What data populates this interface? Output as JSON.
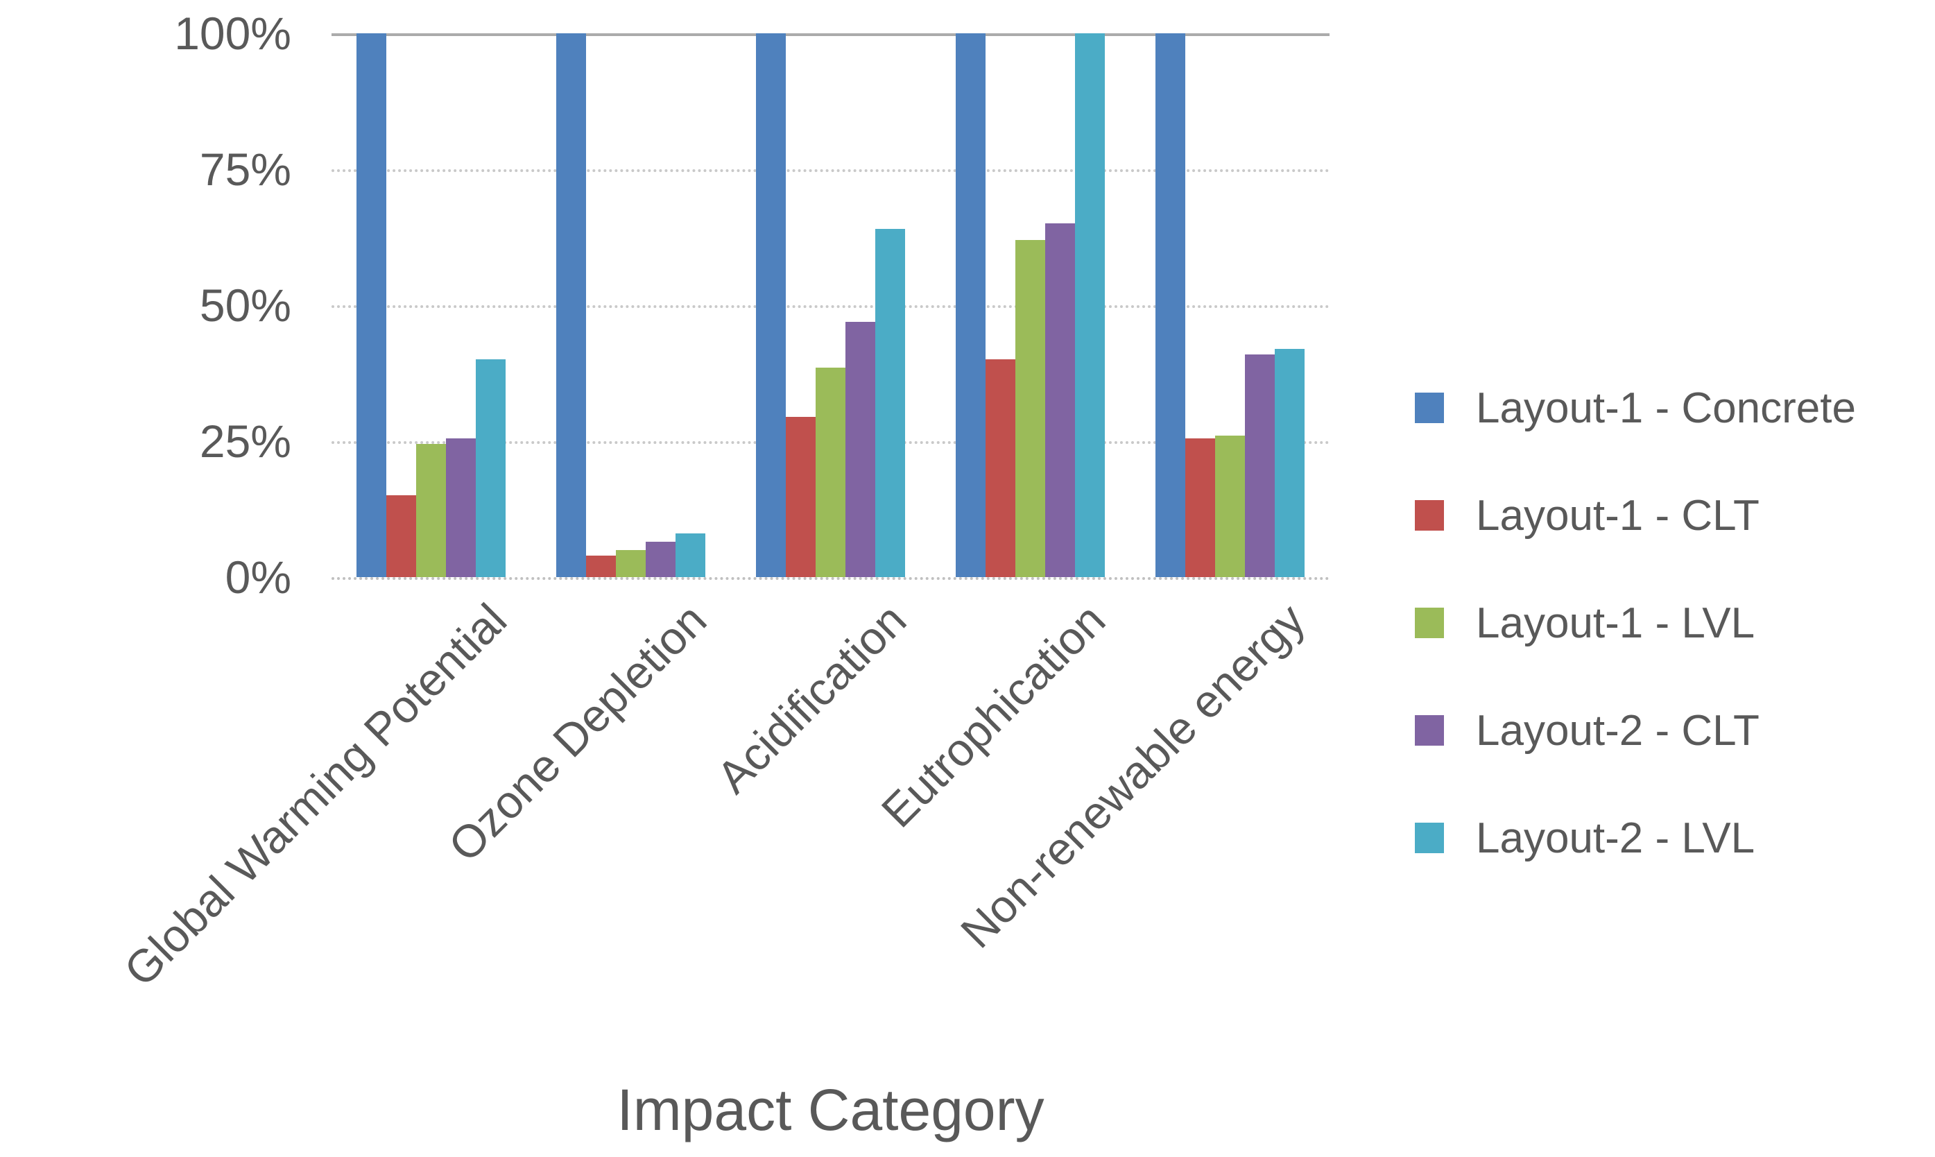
{
  "chart_data": {
    "type": "bar",
    "title": "",
    "xlabel": "Impact Category",
    "ylabel": "",
    "categories": [
      "Global Warming Potential",
      "Ozone Depletion",
      "Acidification",
      "Eutrophication",
      "Non-renewable energy"
    ],
    "series": [
      {
        "name": "Layout-1 - Concrete",
        "color": "#4F81BD",
        "values": [
          100,
          100,
          100,
          100,
          100
        ]
      },
      {
        "name": "Layout-1 - CLT",
        "color": "#C0504D",
        "values": [
          15,
          4,
          29.5,
          40,
          25.5
        ]
      },
      {
        "name": "Layout-1 - LVL",
        "color": "#9BBB59",
        "values": [
          24.5,
          5,
          38.5,
          62,
          26
        ]
      },
      {
        "name": "Layout-2 - CLT",
        "color": "#8064A2",
        "values": [
          25.5,
          6.5,
          47,
          65,
          41
        ]
      },
      {
        "name": "Layout-2 - LVL",
        "color": "#4BACC6",
        "values": [
          40,
          8,
          64,
          100,
          42
        ]
      }
    ],
    "y_ticks": [
      "100%",
      "75%",
      "50%",
      "25%",
      "0%"
    ],
    "y_tick_values": [
      100,
      75,
      50,
      25,
      0
    ],
    "ylim": [
      0,
      100
    ],
    "grid": true,
    "legend_position": "right",
    "text_color": "#595959",
    "gridline_color": "#c9c9c9"
  }
}
